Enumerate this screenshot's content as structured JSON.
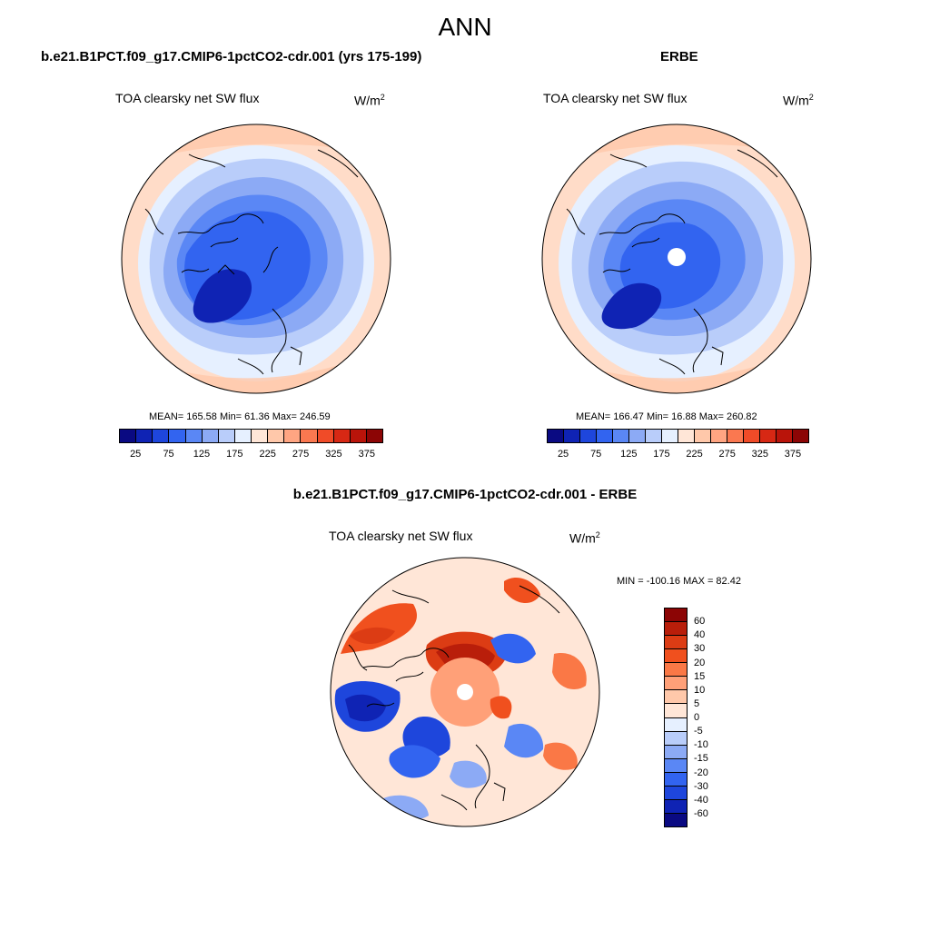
{
  "title": "ANN",
  "left_panel": {
    "case": "b.e21.B1PCT.f09_g17.CMIP6-1pctCO2-cdr.001 (yrs 175-199)",
    "variable": "TOA clearsky net SW flux",
    "unit_base": "W/m",
    "unit_exp": "2",
    "stats": "MEAN= 165.58  Min=  61.36  Max= 246.59"
  },
  "right_panel": {
    "case": "ERBE",
    "variable": "TOA clearsky net SW flux",
    "unit_base": "W/m",
    "unit_exp": "2",
    "stats": "MEAN= 166.47  Min=  16.88  Max= 260.82"
  },
  "diff_panel": {
    "case": "b.e21.B1PCT.f09_g17.CMIP6-1pctCO2-cdr.001 - ERBE",
    "variable": "TOA clearsky net SW flux",
    "unit_base": "W/m",
    "unit_exp": "2",
    "stats": "MIN = -100.16 MAX =  82.42"
  },
  "colorbar_top": {
    "tick_labels": [
      "25",
      "75",
      "125",
      "175",
      "225",
      "275",
      "325",
      "375"
    ],
    "colors": [
      "#0a0a82",
      "#0f23b4",
      "#1e46dc",
      "#3264f0",
      "#5a87f5",
      "#8caaf5",
      "#b9cdfa",
      "#e6f0ff",
      "#ffe6d7",
      "#ffc8aa",
      "#ffa582",
      "#fa7850",
      "#f04b28",
      "#d72814",
      "#b9140a",
      "#8c0505"
    ]
  },
  "colorbar_diff": {
    "labels": [
      "60",
      "40",
      "30",
      "20",
      "15",
      "10",
      "5",
      "0",
      "-5",
      "-10",
      "-15",
      "-20",
      "-30",
      "-40",
      "-60"
    ],
    "colors": [
      "#8c0505",
      "#b91e0a",
      "#dc3c14",
      "#f0501e",
      "#fa7846",
      "#ffa078",
      "#ffc8aa",
      "#ffe6d7",
      "#e6f0ff",
      "#b9cdfa",
      "#8caaf5",
      "#5a87f5",
      "#3264f0",
      "#1e46dc",
      "#0f23b4",
      "#0a0a82"
    ]
  }
}
